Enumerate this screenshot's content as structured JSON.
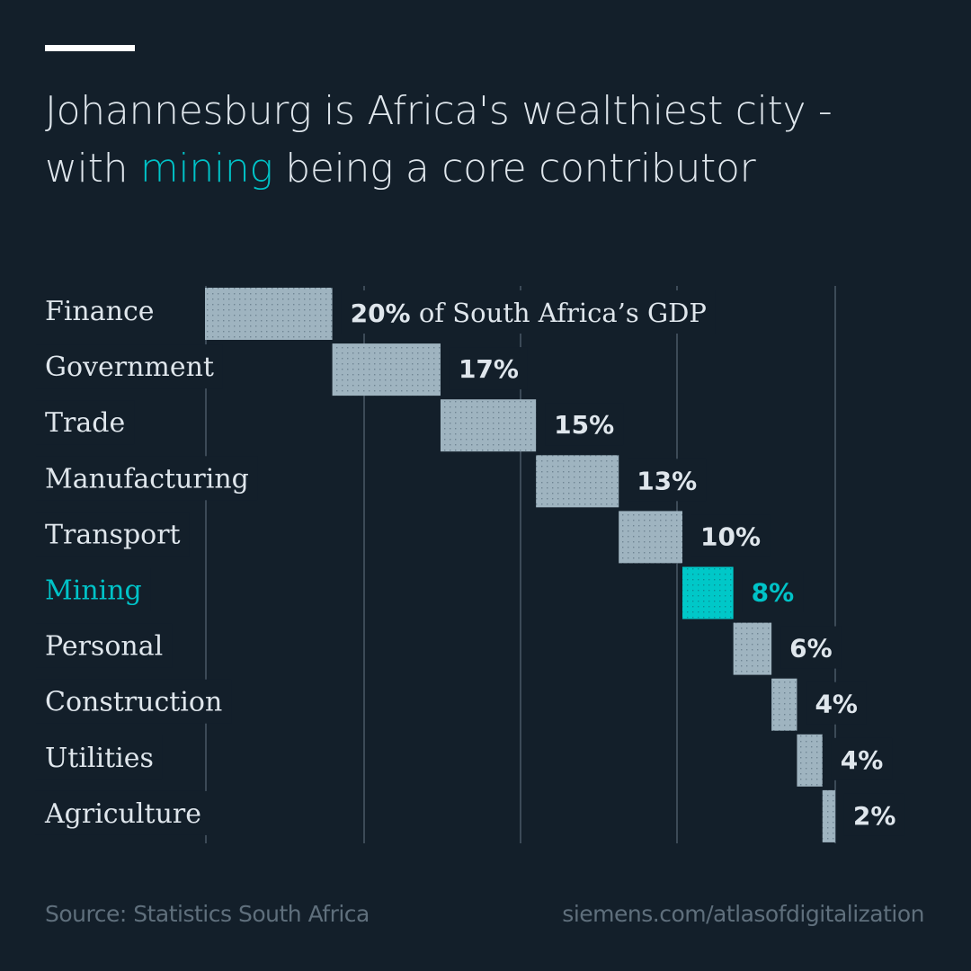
{
  "header": {
    "title_part1": "Johannesburg is Africa's wealthiest city -",
    "title_part2_pre": "with ",
    "title_highlight": "mining",
    "title_part2_post": " being a core contributor"
  },
  "colors": {
    "background": "#131f2a",
    "bar": "#9fb4c0",
    "highlight": "#00c3c8",
    "text": "#dfe6ec",
    "muted": "#5f6f7c"
  },
  "chart_data": {
    "type": "bar",
    "subtype": "waterfall",
    "title": "Johannesburg is Africa's wealthiest city - with mining being a core contributor",
    "xlabel": "",
    "ylabel": "",
    "unit": "% of South Africa's GDP",
    "first_label_suffix": " of South Africa’s GDP",
    "categories": [
      "Finance",
      "Government",
      "Trade",
      "Manufacturing",
      "Transport",
      "Mining",
      "Personal",
      "Construction",
      "Utilities",
      "Agriculture"
    ],
    "values": [
      20,
      17,
      15,
      13,
      10,
      8,
      6,
      4,
      4,
      2
    ],
    "value_labels": [
      "20%",
      "17%",
      "15%",
      "13%",
      "10%",
      "8%",
      "6%",
      "4%",
      "4%",
      "2%"
    ],
    "highlight_category": "Mining",
    "xlim": [
      0,
      99
    ],
    "grid": true
  },
  "footer": {
    "source": "Source: Statistics South Africa",
    "credit": "siemens.com/atlasofdigitalization"
  }
}
